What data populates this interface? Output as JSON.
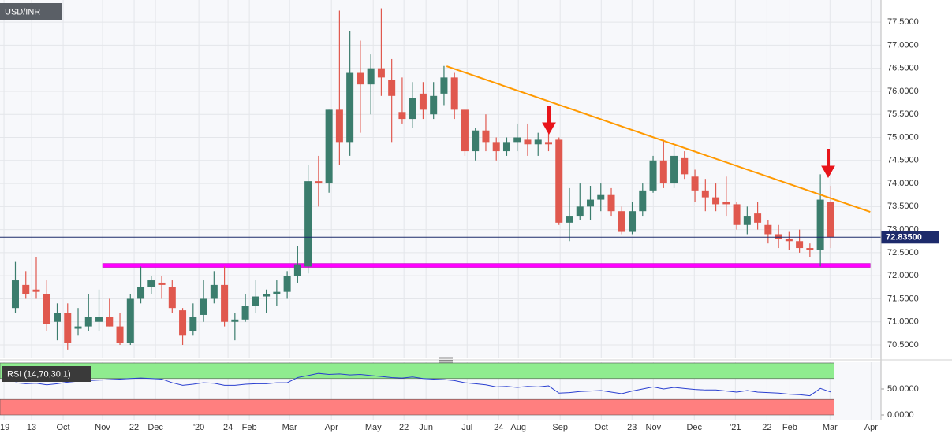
{
  "chart_data": [
    {
      "type": "candlestick",
      "title": "USD/INR",
      "open": [
        71.3,
        71.8,
        71.7,
        71.6,
        71.0,
        71.2,
        70.85,
        70.9,
        71.0,
        71.1,
        70.9,
        70.55,
        71.5,
        71.75,
        71.85,
        71.75,
        71.25,
        70.8,
        71.15,
        71.5,
        71.8,
        71.0,
        71.05,
        71.35,
        71.55,
        71.6,
        71.65,
        72.0,
        72.2,
        74.05,
        74.0,
        75.6,
        74.9,
        76.4,
        76.15,
        76.5,
        76.25,
        75.55,
        75.4,
        75.95,
        75.5,
        75.95,
        76.3,
        75.6,
        74.7,
        75.15,
        74.9,
        74.7,
        74.9,
        74.95,
        74.85,
        74.9,
        74.95,
        73.15,
        73.3,
        73.5,
        73.65,
        73.75,
        73.4,
        72.95,
        73.4,
        73.85,
        74.5,
        74.0,
        74.55,
        74.15,
        73.85,
        73.7,
        73.6,
        73.55,
        73.1,
        73.35,
        73.1,
        72.9,
        72.8,
        72.75,
        72.6,
        72.55,
        73.6
      ],
      "high": [
        72.3,
        72.1,
        72.4,
        71.9,
        71.4,
        71.4,
        71.3,
        71.6,
        71.7,
        71.5,
        71.2,
        71.6,
        72.2,
        72.0,
        72.0,
        71.9,
        71.3,
        71.4,
        71.9,
        72.1,
        72.2,
        71.2,
        71.6,
        71.9,
        71.7,
        71.9,
        72.1,
        72.65,
        74.4,
        74.6,
        75.6,
        77.75,
        77.3,
        77.1,
        76.8,
        77.8,
        76.7,
        76.3,
        76.2,
        76.2,
        76.2,
        76.55,
        76.4,
        75.6,
        75.2,
        75.5,
        75.0,
        75.0,
        75.3,
        75.3,
        75.1,
        75.15,
        75.0,
        73.9,
        74.0,
        73.95,
        74.0,
        73.9,
        73.5,
        73.6,
        74.0,
        74.6,
        74.95,
        74.8,
        74.7,
        74.3,
        74.1,
        74.0,
        74.15,
        73.6,
        73.5,
        73.6,
        73.2,
        73.1,
        72.95,
        73.0,
        72.7,
        74.2,
        73.95
      ],
      "low": [
        71.2,
        71.5,
        71.5,
        70.8,
        70.6,
        70.4,
        70.7,
        70.8,
        70.8,
        70.9,
        70.5,
        70.5,
        71.4,
        71.6,
        71.5,
        71.2,
        70.5,
        70.7,
        71.0,
        71.4,
        70.9,
        70.6,
        71.0,
        71.2,
        71.2,
        71.35,
        71.5,
        71.85,
        72.05,
        73.5,
        73.8,
        74.4,
        74.6,
        75.1,
        75.5,
        75.9,
        74.9,
        75.3,
        75.2,
        75.4,
        75.4,
        75.7,
        75.4,
        74.6,
        74.5,
        74.7,
        74.5,
        74.6,
        74.7,
        74.6,
        74.6,
        74.7,
        73.1,
        72.75,
        73.2,
        73.2,
        73.4,
        73.3,
        72.9,
        72.9,
        73.3,
        73.8,
        73.9,
        73.9,
        74.1,
        73.6,
        73.4,
        73.4,
        73.3,
        73.0,
        72.9,
        73.0,
        72.7,
        72.6,
        72.55,
        72.5,
        72.4,
        72.2,
        72.6
      ],
      "close": [
        71.9,
        71.6,
        71.65,
        70.95,
        71.2,
        70.55,
        70.9,
        71.1,
        71.1,
        70.9,
        70.55,
        71.5,
        71.75,
        71.9,
        71.8,
        71.3,
        70.7,
        71.1,
        71.5,
        71.8,
        71.0,
        71.05,
        71.35,
        71.55,
        71.6,
        71.65,
        72.0,
        72.25,
        74.05,
        74.0,
        75.6,
        74.9,
        76.4,
        76.15,
        76.5,
        76.3,
        75.9,
        75.4,
        75.85,
        75.6,
        75.9,
        76.3,
        75.6,
        74.7,
        75.15,
        74.9,
        74.7,
        74.9,
        75.0,
        74.85,
        74.95,
        74.85,
        73.15,
        73.3,
        73.5,
        73.65,
        73.75,
        73.4,
        72.95,
        73.4,
        73.85,
        74.5,
        74.0,
        74.6,
        74.2,
        73.85,
        73.7,
        73.55,
        73.55,
        73.1,
        73.3,
        73.15,
        72.9,
        72.8,
        72.75,
        72.6,
        72.55,
        73.65,
        72.835
      ],
      "up_color": "#3b7d6d",
      "down_color": "#e0584e",
      "xlim": [
        -1.47,
        82.8
      ],
      "xticks": [
        {
          "value": -1.09,
          "label": "'19"
        },
        {
          "value": 1.55,
          "label": "13"
        },
        {
          "value": 4.57,
          "label": "Oct"
        },
        {
          "value": 8.34,
          "label": "Nov"
        },
        {
          "value": 11.36,
          "label": "22"
        },
        {
          "value": 13.4,
          "label": "Dec"
        },
        {
          "value": 17.55,
          "label": "'20"
        },
        {
          "value": 20.34,
          "label": "24"
        },
        {
          "value": 22.38,
          "label": "Feb"
        },
        {
          "value": 26.23,
          "label": "Mar"
        },
        {
          "value": 30.23,
          "label": "Apr"
        },
        {
          "value": 34.23,
          "label": "May"
        },
        {
          "value": 37.17,
          "label": "22"
        },
        {
          "value": 39.28,
          "label": "Jun"
        },
        {
          "value": 43.21,
          "label": "Jul"
        },
        {
          "value": 46.23,
          "label": "24"
        },
        {
          "value": 48.11,
          "label": "Aug"
        },
        {
          "value": 52.11,
          "label": "Sep"
        },
        {
          "value": 56.04,
          "label": "Oct"
        },
        {
          "value": 58.98,
          "label": "23"
        },
        {
          "value": 61.02,
          "label": "Nov"
        },
        {
          "value": 64.94,
          "label": "Dec"
        },
        {
          "value": 68.87,
          "label": "'21"
        },
        {
          "value": 71.89,
          "label": "22"
        },
        {
          "value": 74.08,
          "label": "Feb"
        },
        {
          "value": 77.92,
          "label": "Mar"
        },
        {
          "value": 81.85,
          "label": "Apr"
        }
      ],
      "ylim": [
        70.21,
        77.98
      ],
      "yticks": [
        {
          "value": 70.5,
          "label": "70.5000"
        },
        {
          "value": 71,
          "label": "71.0000"
        },
        {
          "value": 71.5,
          "label": "71.5000"
        },
        {
          "value": 72,
          "label": "72.0000"
        },
        {
          "value": 72.5,
          "label": "72.5000"
        },
        {
          "value": 73,
          "label": "73.0000"
        },
        {
          "value": 73.5,
          "label": "73.5000"
        },
        {
          "value": 74,
          "label": "74.0000"
        },
        {
          "value": 74.5,
          "label": "74.5000"
        },
        {
          "value": 75,
          "label": "75.0000"
        },
        {
          "value": 75.5,
          "label": "75.5000"
        },
        {
          "value": 76,
          "label": "76.0000"
        },
        {
          "value": 76.5,
          "label": "76.5000"
        },
        {
          "value": 77,
          "label": "77.0000"
        },
        {
          "value": 77.5,
          "label": "77.5000"
        }
      ],
      "grid": true,
      "last_price": {
        "value": 72.835,
        "label": "72.83500",
        "color": "#1c2a6b"
      },
      "trendline": {
        "x": [
          41.25,
          81.77
        ],
        "y": [
          76.544,
          73.385
        ],
        "color": "#ff9900"
      },
      "support_line": {
        "x": [
          8.34,
          81.77
        ],
        "y": 72.224,
        "color": "#ff00ff"
      }
    },
    {
      "type": "line",
      "title": "RSI (14,70,30,1)",
      "values": [
        62,
        60,
        61,
        58,
        60,
        63,
        65,
        66,
        67,
        68,
        69,
        70,
        71,
        70,
        69,
        62,
        57,
        59,
        62,
        61,
        57,
        57,
        59,
        60,
        60,
        62,
        62,
        72,
        76,
        80,
        78,
        79,
        77,
        78,
        76,
        74,
        72,
        71,
        73,
        70,
        69,
        68,
        66,
        62,
        60,
        58,
        54,
        55,
        53,
        55,
        54,
        56,
        42,
        43,
        45,
        46,
        47,
        44,
        41,
        46,
        50,
        54,
        50,
        53,
        51,
        49,
        48,
        48,
        46,
        44,
        47,
        44,
        43,
        42,
        40,
        39,
        37,
        51,
        44
      ],
      "color": "#2a3fd0",
      "ylim": [
        -9.1,
        101.5
      ],
      "yticks": [
        {
          "value": 0,
          "label": "0.0000"
        },
        {
          "value": 50,
          "label": "50.0000"
        }
      ],
      "overbought_zone": [
        70,
        100
      ],
      "oversold_zone": [
        0,
        30
      ],
      "zone_colors": [
        "#8fec8f",
        "#ff7f7f"
      ]
    }
  ]
}
